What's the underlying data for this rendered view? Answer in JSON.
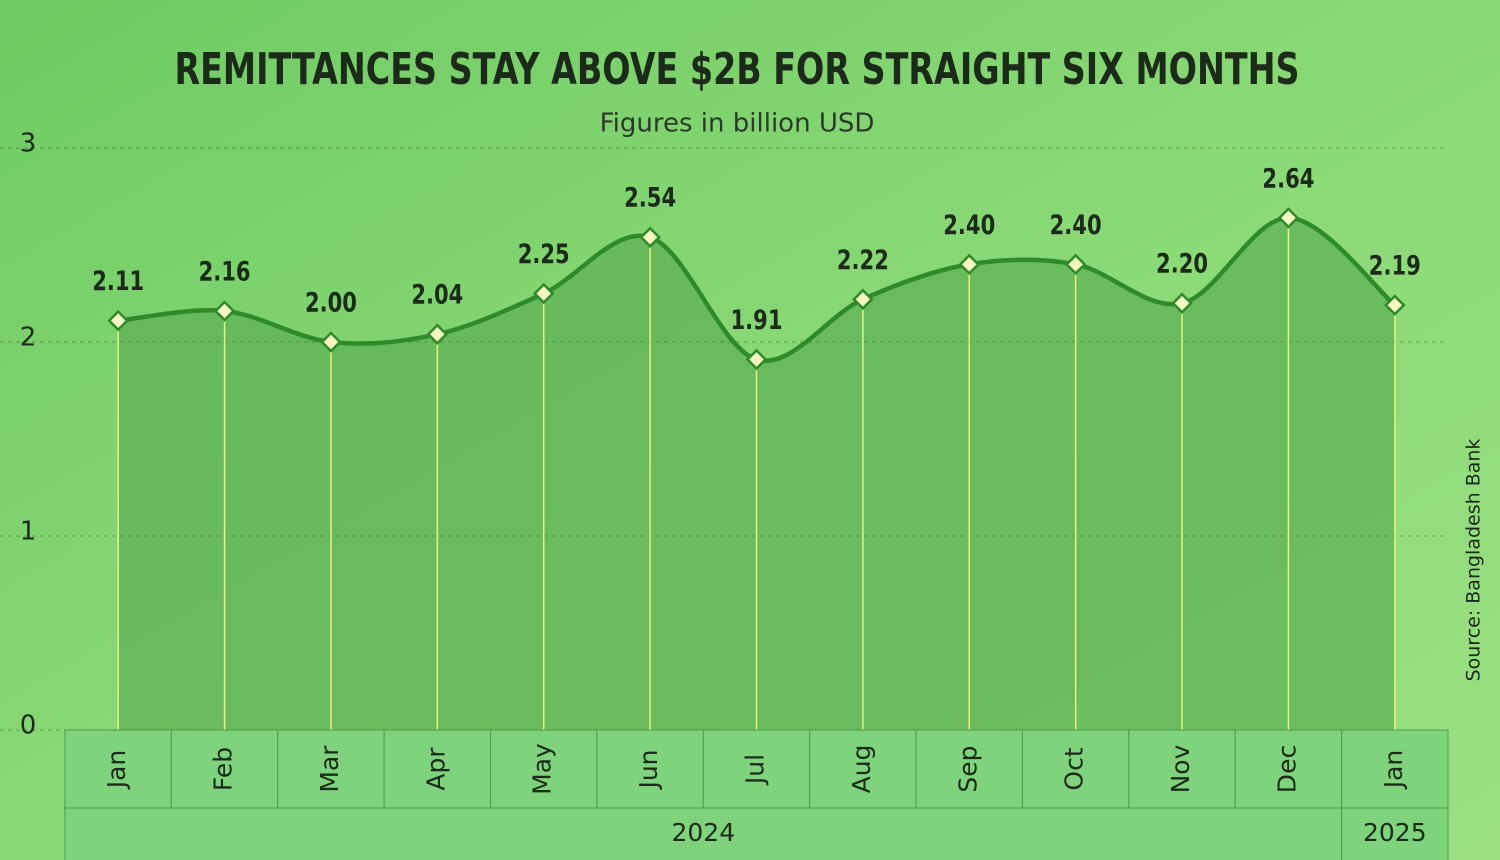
{
  "chart_data": {
    "type": "line",
    "title": "REMITTANCES STAY ABOVE $2B FOR STRAIGHT SIX MONTHS",
    "subtitle": "Figures in billion USD",
    "source": "Source: Bangladesh Bank",
    "categories": [
      "Jan",
      "Feb",
      "Mar",
      "Apr",
      "May",
      "Jun",
      "Jul",
      "Aug",
      "Sep",
      "Oct",
      "Nov",
      "Dec",
      "Jan"
    ],
    "years": [
      "2024",
      "2025"
    ],
    "series": [
      {
        "name": "Remittances",
        "color": "#2f8a2a",
        "values": [
          2.11,
          2.16,
          2.0,
          2.04,
          2.25,
          2.54,
          1.91,
          2.22,
          2.4,
          2.4,
          2.2,
          2.64,
          2.19
        ],
        "value_labels": [
          "2.11",
          "2.16",
          "2.00",
          "2.04",
          "2.25",
          "2.54",
          "1.91",
          "2.22",
          "2.40",
          "2.40",
          "2.20",
          "2.64",
          "2.19"
        ]
      }
    ],
    "ylim": [
      0,
      3
    ],
    "yticks": [
      0,
      1,
      2,
      3
    ],
    "grid": true
  }
}
